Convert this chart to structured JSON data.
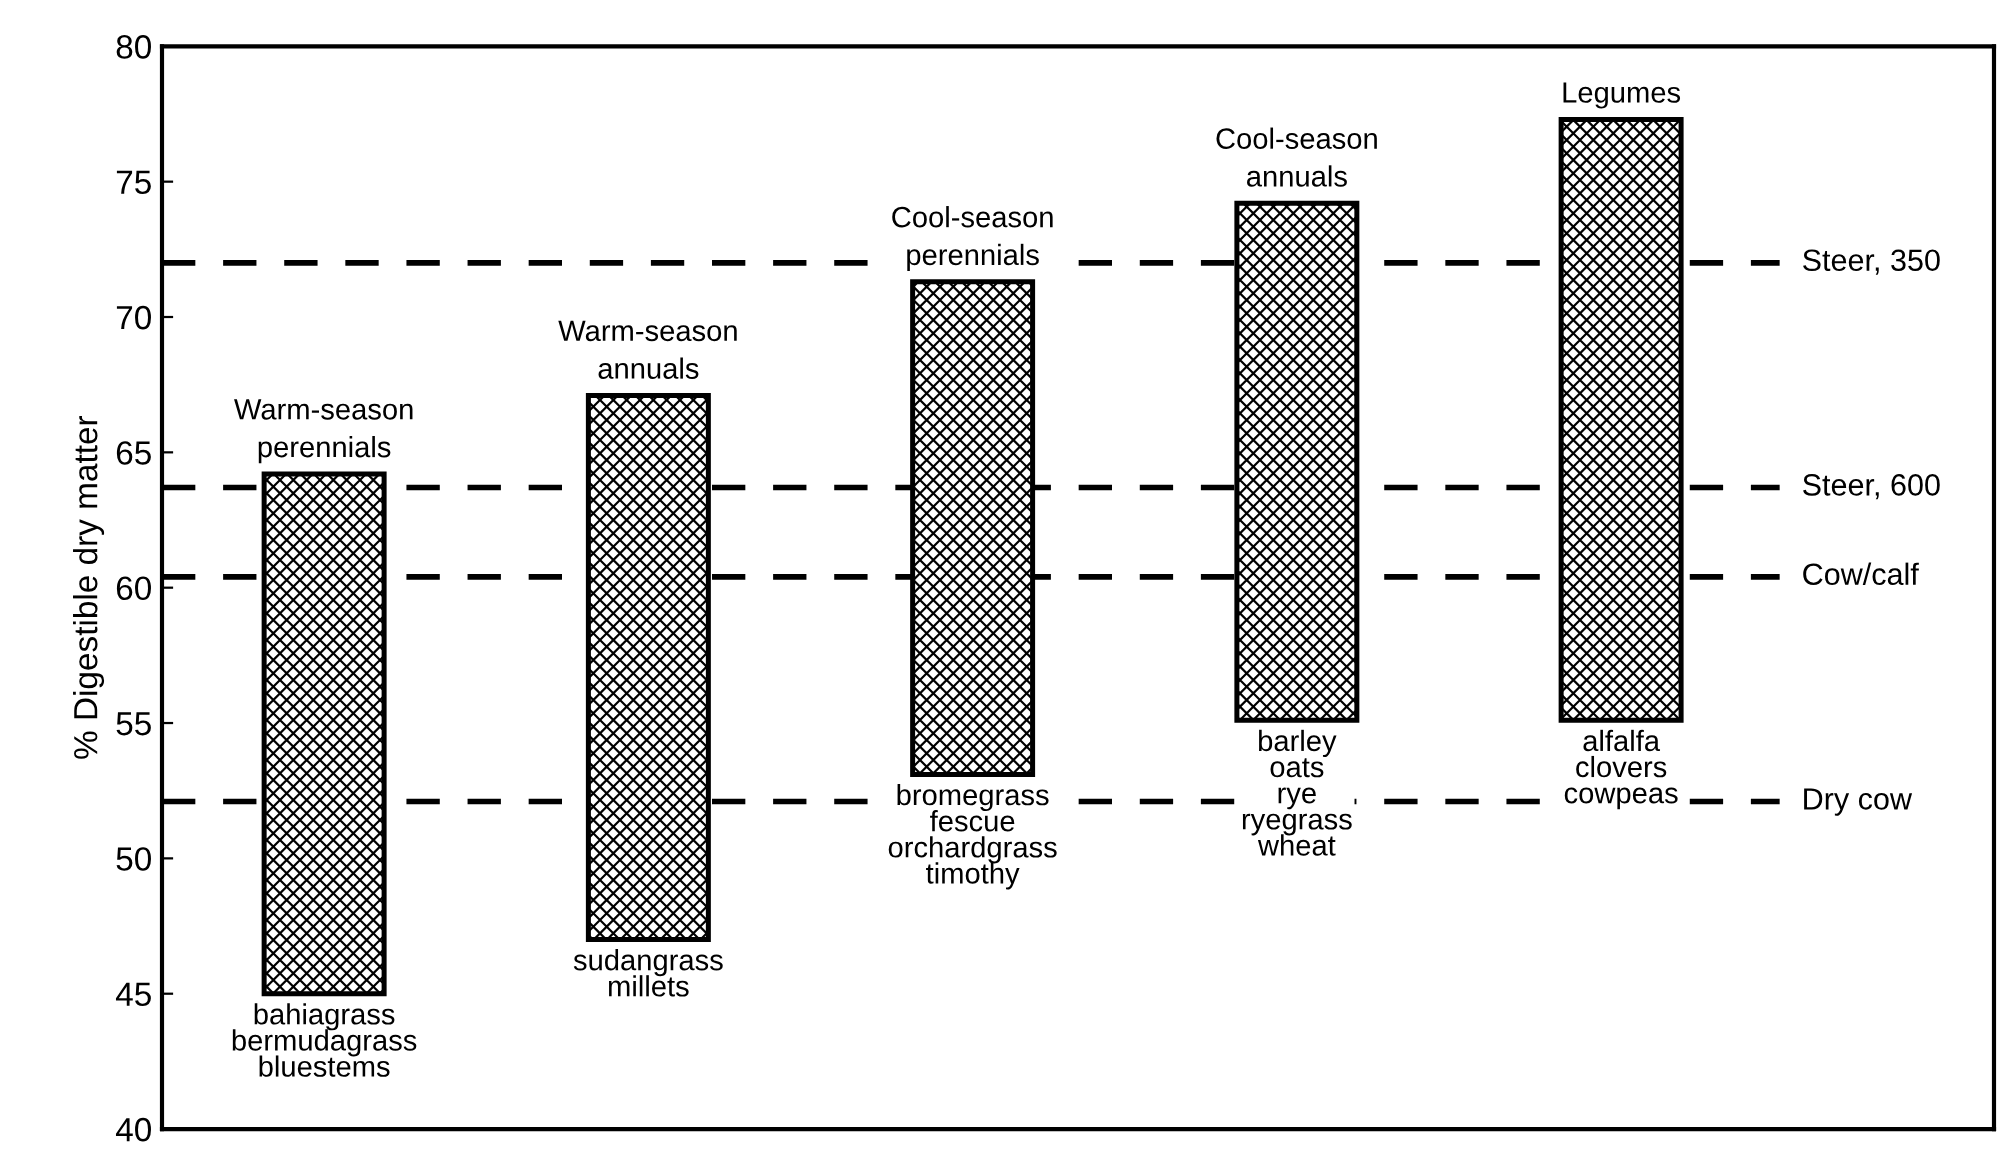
{
  "chart_data": {
    "type": "bar",
    "ylabel": "% Digestible dry matter",
    "categories": [
      "Warm-season\nperennials",
      "Warm-season\nannuals",
      "Cool-season\nperennials",
      "Cool-season\nannuals",
      "Legumes"
    ],
    "base": [
      45.0,
      47.0,
      53.1,
      55.1,
      55.1
    ],
    "values": [
      19.2,
      20.1,
      18.2,
      19.1,
      22.2
    ],
    "color": "#000000",
    "ylim": [
      40,
      80
    ],
    "yticks": [
      40,
      45,
      50,
      55,
      60,
      65,
      70,
      75,
      80
    ],
    "tick_labels": "y",
    "grid": false,
    "ref_lines": [
      {
        "axis": "y",
        "value": 72.0,
        "label": "Steer, 350",
        "color": "#000000",
        "line_style": "dashed"
      },
      {
        "axis": "y",
        "value": 63.7,
        "label": "Steer, 600",
        "color": "#000000",
        "line_style": "dashed"
      },
      {
        "axis": "y",
        "value": 60.4,
        "label": "Cow/calf",
        "color": "#000000",
        "line_style": "dashed"
      },
      {
        "axis": "y",
        "value": 52.1,
        "label": "Dry cow",
        "color": "#000000",
        "line_style": "dashed"
      }
    ],
    "annotations": [
      {
        "text": "bahiagrass\nbermudagrass\nbluestems",
        "x": "Warm-season\nperennials",
        "y": 45.0
      },
      {
        "text": "sudangrass\nmillets",
        "x": "Warm-season\nannuals",
        "y": 47.0
      },
      {
        "text": "bromegrass\nfescue\norchardgrass\ntimothy",
        "x": "Cool-season\nperennials",
        "y": 53.1
      },
      {
        "text": "barley\noats\nrye\nryegrass\nwheat",
        "x": "Cool-season\nannuals",
        "y": 55.1
      },
      {
        "text": "alfalfa\nclovers\ncowpeas",
        "x": "Legumes",
        "y": 55.1
      }
    ]
  }
}
